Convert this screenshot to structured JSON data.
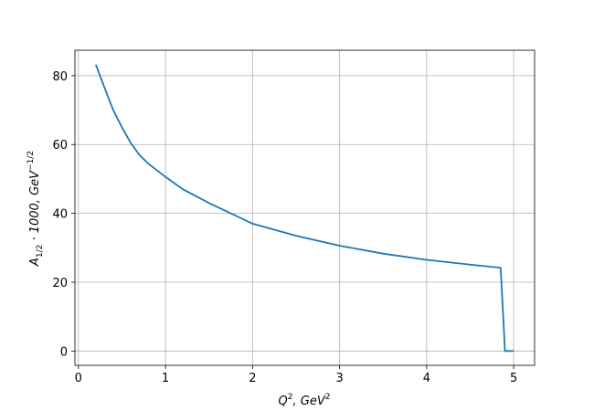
{
  "chart_data": {
    "type": "line",
    "xlabel": [
      "Q",
      "2",
      ", GeV",
      "2"
    ],
    "ylabel": [
      "A",
      "1/2",
      " · 1000, GeV",
      "−1/2"
    ],
    "x": [
      0.2,
      0.3,
      0.4,
      0.5,
      0.6,
      0.7,
      0.8,
      1.0,
      1.2,
      1.5,
      2.0,
      2.5,
      3.0,
      3.5,
      4.0,
      4.5,
      4.85,
      4.9,
      5.0
    ],
    "series": [
      {
        "color": "#1f77b4",
        "values": [
          83.2,
          76.5,
          70,
          65,
          60.5,
          57,
          54.5,
          50.6,
          47,
          43,
          37,
          33.5,
          30.6,
          28.3,
          26.5,
          25.1,
          24.2,
          0,
          0
        ]
      }
    ],
    "xlim": [
      -0.04,
      5.24
    ],
    "ylim": [
      -4.16,
      87.4
    ],
    "xticks": [
      0,
      1,
      2,
      3,
      4,
      5
    ],
    "yticks": [
      0,
      20,
      40,
      60,
      80
    ],
    "grid": true
  }
}
